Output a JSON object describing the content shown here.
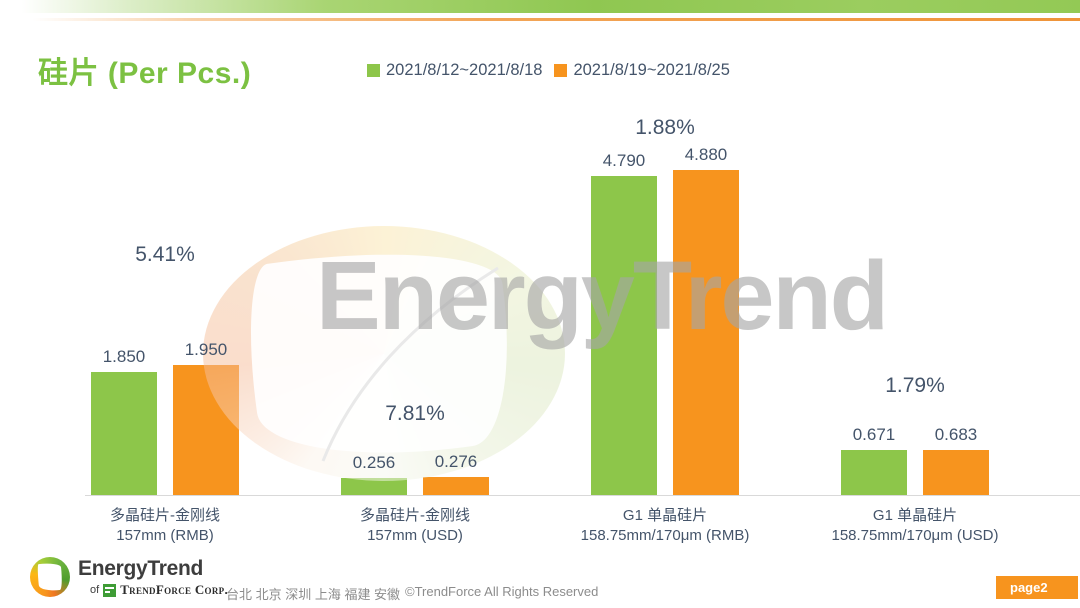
{
  "header": {
    "title": "硅片 (Per Pcs.)"
  },
  "legend": [
    {
      "label": "2021/8/12~2021/8/18",
      "color": "#8dc64a"
    },
    {
      "label": "2021/8/19~2021/8/25",
      "color": "#f7941e"
    }
  ],
  "watermark": {
    "text": "EnergyTrend"
  },
  "chart_data": {
    "type": "bar",
    "title": "硅片 (Per Pcs.)",
    "categories": [
      {
        "line1": "多晶硅片-金刚线",
        "line2": "157mm (RMB)"
      },
      {
        "line1": "多晶硅片-金刚线",
        "line2": "157mm (USD)"
      },
      {
        "line1": "G1 单晶硅片",
        "line2": "158.75mm/170μm (RMB)"
      },
      {
        "line1": "G1 单晶硅片",
        "line2": "158.75mm/170μm (USD)"
      }
    ],
    "series": [
      {
        "name": "2021/8/12~2021/8/18",
        "color": "#8dc64a",
        "values": [
          1.85,
          0.256,
          4.79,
          0.671
        ],
        "labels": [
          "1.850",
          "0.256",
          "4.790",
          "0.671"
        ]
      },
      {
        "name": "2021/8/19~2021/8/25",
        "color": "#f7941e",
        "values": [
          1.95,
          0.276,
          4.88,
          0.683
        ],
        "labels": [
          "1.950",
          "0.276",
          "4.880",
          "0.683"
        ]
      }
    ],
    "change_labels": [
      "5.41%",
      "7.81%",
      "1.88%",
      "1.79%"
    ],
    "ylim": [
      0,
      5.85
    ],
    "grid": false,
    "legend_position": "top",
    "layout": {
      "pct_label_y": [
        243,
        402,
        116,
        374
      ]
    }
  },
  "footer": {
    "logo_title": "EnergyTrend",
    "logo_sub_prefix": "of",
    "logo_sub": "TrendForce Corp.",
    "cities": "台北 北京 深圳 上海 福建 安徽",
    "copyright": "©TrendForce All Rights Reserved",
    "page_badge": "page2"
  },
  "colors": {
    "title_green": "#7cc142",
    "bar_green": "#8dc64a",
    "bar_orange": "#f7941e",
    "text_dark": "#44546a",
    "axis_line": "#d9d9d9",
    "watermark_gray": "#a6a6a6",
    "footer_gray": "#8c8c8c"
  }
}
